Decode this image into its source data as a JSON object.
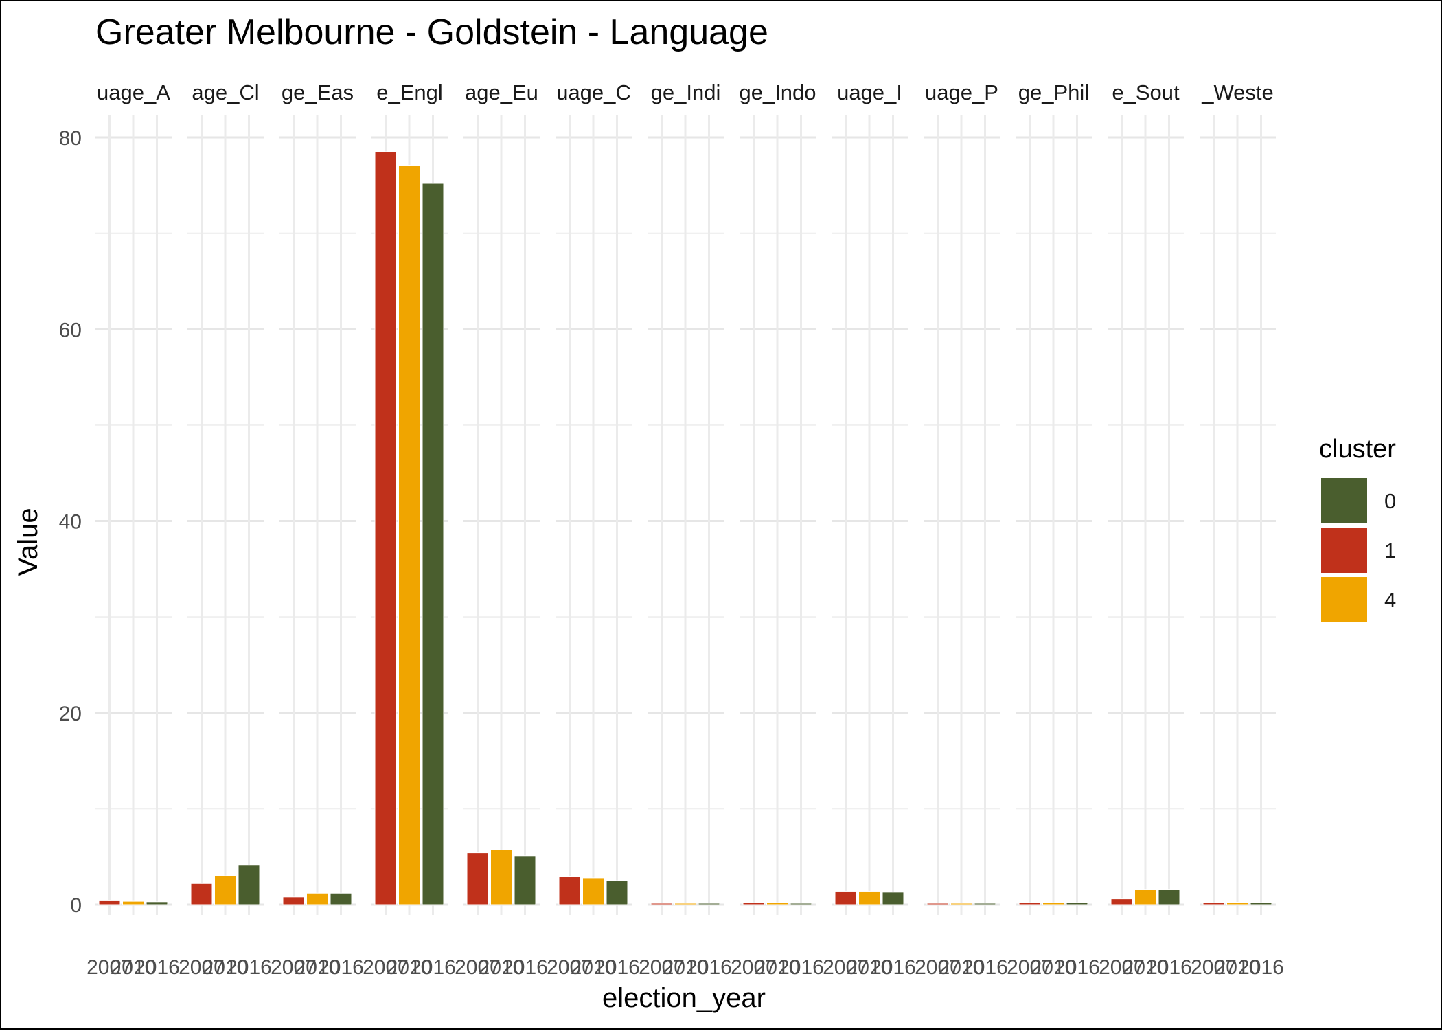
{
  "chart_data": {
    "type": "bar",
    "title": "Greater Melbourne - Goldstein - Language",
    "xlabel": "election_year",
    "ylabel": "Value",
    "ylim": [
      0,
      80
    ],
    "yticks": [
      0,
      20,
      40,
      60,
      80
    ],
    "grid": true,
    "legend_title": "cluster",
    "legend_position": "right",
    "legend": [
      {
        "label": "0",
        "color": "#4a5e2e"
      },
      {
        "label": "1",
        "color": "#c0311b"
      },
      {
        "label": "4",
        "color": "#f0a500"
      }
    ],
    "x_tick_labels": [
      "2007",
      "2010",
      "2016"
    ],
    "facets": [
      {
        "label": "uage_A",
        "values": [
          {
            "year": "2007",
            "cluster": "1",
            "value": 0.4
          },
          {
            "year": "2010",
            "cluster": "4",
            "value": 0.35
          },
          {
            "year": "2016",
            "cluster": "0",
            "value": 0.3
          }
        ]
      },
      {
        "label": "age_Cl",
        "values": [
          {
            "year": "2007",
            "cluster": "1",
            "value": 2.2
          },
          {
            "year": "2010",
            "cluster": "4",
            "value": 3.0
          },
          {
            "year": "2016",
            "cluster": "0",
            "value": 4.1
          }
        ]
      },
      {
        "label": "ge_Eas",
        "values": [
          {
            "year": "2007",
            "cluster": "1",
            "value": 0.8
          },
          {
            "year": "2010",
            "cluster": "4",
            "value": 1.2
          },
          {
            "year": "2016",
            "cluster": "0",
            "value": 1.2
          }
        ]
      },
      {
        "label": "e_Engl",
        "values": [
          {
            "year": "2007",
            "cluster": "1",
            "value": 78.5
          },
          {
            "year": "2010",
            "cluster": "4",
            "value": 77.1
          },
          {
            "year": "2016",
            "cluster": "0",
            "value": 75.2
          }
        ]
      },
      {
        "label": "age_Eu",
        "values": [
          {
            "year": "2007",
            "cluster": "1",
            "value": 5.4
          },
          {
            "year": "2010",
            "cluster": "4",
            "value": 5.7
          },
          {
            "year": "2016",
            "cluster": "0",
            "value": 5.1
          }
        ]
      },
      {
        "label": "uage_C",
        "values": [
          {
            "year": "2007",
            "cluster": "1",
            "value": 2.9
          },
          {
            "year": "2010",
            "cluster": "4",
            "value": 2.8
          },
          {
            "year": "2016",
            "cluster": "0",
            "value": 2.5
          }
        ]
      },
      {
        "label": "ge_Indi",
        "values": [
          {
            "year": "2007",
            "cluster": "1",
            "value": 0.0
          },
          {
            "year": "2010",
            "cluster": "4",
            "value": 0.0
          },
          {
            "year": "2016",
            "cluster": "0",
            "value": 0.0
          }
        ]
      },
      {
        "label": "ge_Indo",
        "values": [
          {
            "year": "2007",
            "cluster": "1",
            "value": 0.2
          },
          {
            "year": "2010",
            "cluster": "4",
            "value": 0.2
          },
          {
            "year": "2016",
            "cluster": "0",
            "value": 0.1
          }
        ]
      },
      {
        "label": "uage_I",
        "values": [
          {
            "year": "2007",
            "cluster": "1",
            "value": 1.4
          },
          {
            "year": "2010",
            "cluster": "4",
            "value": 1.4
          },
          {
            "year": "2016",
            "cluster": "0",
            "value": 1.3
          }
        ]
      },
      {
        "label": "uage_P",
        "values": [
          {
            "year": "2007",
            "cluster": "1",
            "value": 0.0
          },
          {
            "year": "2010",
            "cluster": "4",
            "value": 0.0
          },
          {
            "year": "2016",
            "cluster": "0",
            "value": 0.0
          }
        ]
      },
      {
        "label": "ge_Phil",
        "values": [
          {
            "year": "2007",
            "cluster": "1",
            "value": 0.2
          },
          {
            "year": "2010",
            "cluster": "4",
            "value": 0.2
          },
          {
            "year": "2016",
            "cluster": "0",
            "value": 0.2
          }
        ]
      },
      {
        "label": "e_Sout",
        "values": [
          {
            "year": "2007",
            "cluster": "1",
            "value": 0.6
          },
          {
            "year": "2010",
            "cluster": "4",
            "value": 1.6
          },
          {
            "year": "2016",
            "cluster": "0",
            "value": 1.6
          }
        ]
      },
      {
        "label": "_Weste",
        "values": [
          {
            "year": "2007",
            "cluster": "1",
            "value": 0.2
          },
          {
            "year": "2010",
            "cluster": "4",
            "value": 0.25
          },
          {
            "year": "2016",
            "cluster": "0",
            "value": 0.2
          }
        ]
      }
    ]
  }
}
